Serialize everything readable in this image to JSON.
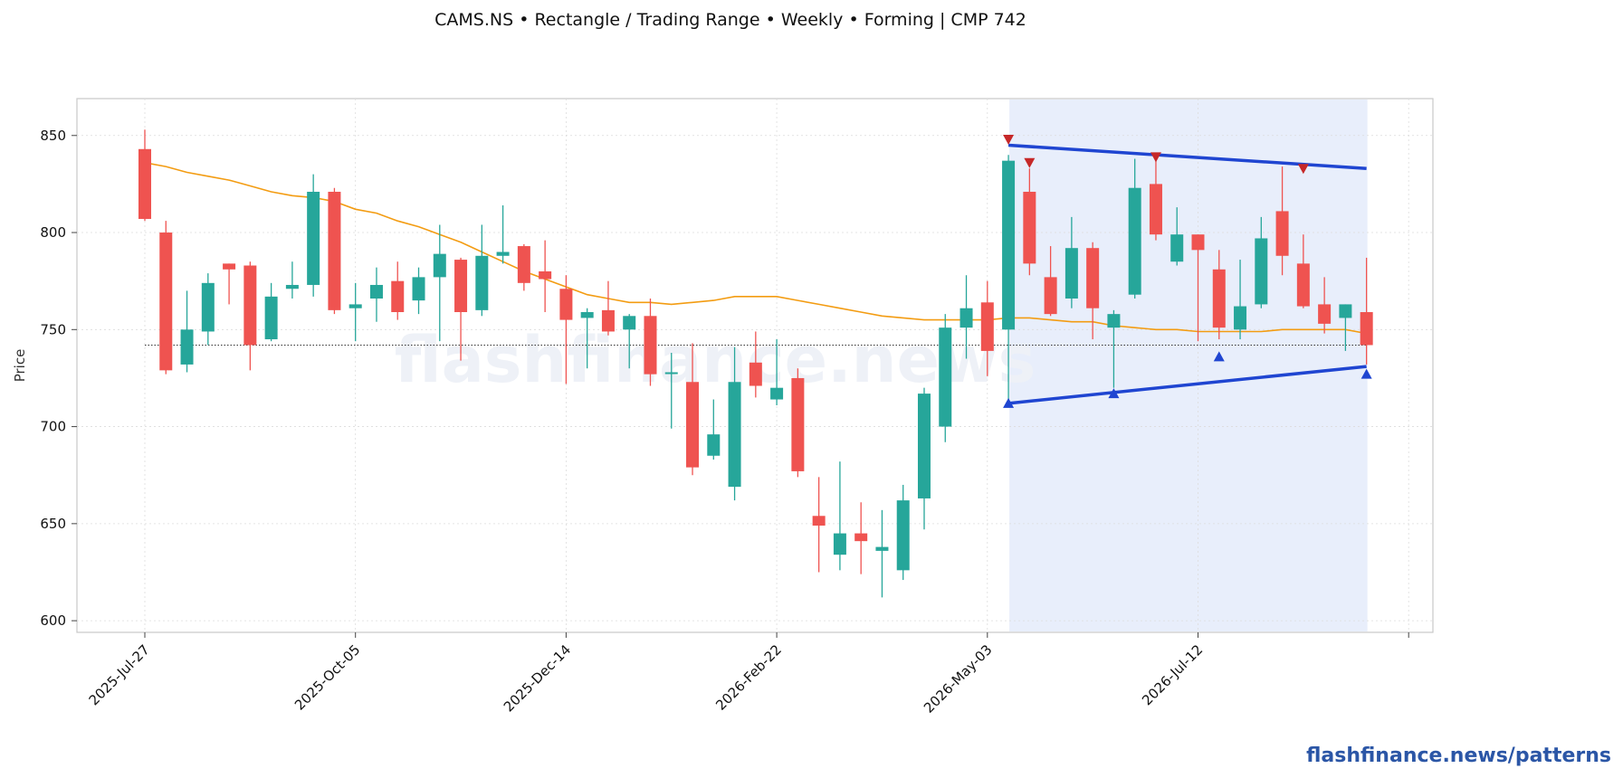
{
  "chart_data": {
    "type": "candlestick",
    "title": "CAMS.NS  •  Rectangle / Trading Range  •  Weekly  •  Forming  |  CMP 742",
    "ylabel": "Price",
    "xlabel": "",
    "ylim": [
      594,
      869
    ],
    "yticks": [
      600,
      650,
      700,
      750,
      800,
      850
    ],
    "grid": true,
    "watermark": "flashfinance.news",
    "footer": "flashfinance.news/patterns",
    "x_tick_labels": [
      "2025-Jul-27",
      "2025-Oct-05",
      "2025-Dec-14",
      "2026-Feb-22",
      "2026-May-03",
      "2026-Jul-12"
    ],
    "candles": [
      {
        "date": "2025-Jul-27",
        "o": 843,
        "h": 853,
        "l": 806,
        "c": 807
      },
      {
        "date": "2025-Aug-03",
        "o": 800,
        "h": 806,
        "l": 727,
        "c": 729
      },
      {
        "date": "2025-Aug-10",
        "o": 732,
        "h": 770,
        "l": 728,
        "c": 750
      },
      {
        "date": "2025-Aug-17",
        "o": 749,
        "h": 779,
        "l": 742,
        "c": 774
      },
      {
        "date": "2025-Aug-24",
        "o": 784,
        "h": 784,
        "l": 763,
        "c": 781
      },
      {
        "date": "2025-Aug-31",
        "o": 783,
        "h": 785,
        "l": 729,
        "c": 742
      },
      {
        "date": "2025-Sep-07",
        "o": 745,
        "h": 774,
        "l": 744,
        "c": 767
      },
      {
        "date": "2025-Sep-14",
        "o": 771,
        "h": 785,
        "l": 766,
        "c": 773
      },
      {
        "date": "2025-Sep-21",
        "o": 773,
        "h": 830,
        "l": 767,
        "c": 821
      },
      {
        "date": "2025-Sep-28",
        "o": 821,
        "h": 823,
        "l": 758,
        "c": 760
      },
      {
        "date": "2025-Oct-05",
        "o": 761,
        "h": 774,
        "l": 744,
        "c": 763
      },
      {
        "date": "2025-Oct-12",
        "o": 766,
        "h": 782,
        "l": 754,
        "c": 773
      },
      {
        "date": "2025-Oct-19",
        "o": 775,
        "h": 785,
        "l": 755,
        "c": 759
      },
      {
        "date": "2025-Oct-26",
        "o": 765,
        "h": 782,
        "l": 758,
        "c": 777
      },
      {
        "date": "2025-Nov-02",
        "o": 777,
        "h": 804,
        "l": 744,
        "c": 789
      },
      {
        "date": "2025-Nov-09",
        "o": 786,
        "h": 787,
        "l": 734,
        "c": 759
      },
      {
        "date": "2025-Nov-16",
        "o": 760,
        "h": 804,
        "l": 757,
        "c": 788
      },
      {
        "date": "2025-Nov-23",
        "o": 788,
        "h": 814,
        "l": 784,
        "c": 790
      },
      {
        "date": "2025-Nov-30",
        "o": 793,
        "h": 794,
        "l": 770,
        "c": 774
      },
      {
        "date": "2025-Dec-07",
        "o": 780,
        "h": 796,
        "l": 759,
        "c": 776
      },
      {
        "date": "2025-Dec-14",
        "o": 771,
        "h": 778,
        "l": 722,
        "c": 755
      },
      {
        "date": "2025-Dec-21",
        "o": 756,
        "h": 761,
        "l": 730,
        "c": 759
      },
      {
        "date": "2025-Dec-28",
        "o": 760,
        "h": 775,
        "l": 747,
        "c": 749
      },
      {
        "date": "2026-Jan-04",
        "o": 750,
        "h": 758,
        "l": 730,
        "c": 757
      },
      {
        "date": "2026-Jan-11",
        "o": 757,
        "h": 766,
        "l": 721,
        "c": 727
      },
      {
        "date": "2026-Jan-18",
        "o": 728,
        "h": 738,
        "l": 699,
        "c": 728
      },
      {
        "date": "2026-Jan-25",
        "o": 723,
        "h": 743,
        "l": 675,
        "c": 679
      },
      {
        "date": "2026-Feb-01",
        "o": 685,
        "h": 714,
        "l": 683,
        "c": 696
      },
      {
        "date": "2026-Feb-08",
        "o": 669,
        "h": 741,
        "l": 662,
        "c": 723
      },
      {
        "date": "2026-Feb-15",
        "o": 733,
        "h": 749,
        "l": 715,
        "c": 721
      },
      {
        "date": "2026-Feb-22",
        "o": 714,
        "h": 745,
        "l": 711,
        "c": 720
      },
      {
        "date": "2026-Mar-01",
        "o": 725,
        "h": 730,
        "l": 674,
        "c": 677
      },
      {
        "date": "2026-Mar-08",
        "o": 654,
        "h": 674,
        "l": 625,
        "c": 649
      },
      {
        "date": "2026-Mar-15",
        "o": 634,
        "h": 682,
        "l": 626,
        "c": 645
      },
      {
        "date": "2026-Mar-22",
        "o": 645,
        "h": 661,
        "l": 624,
        "c": 641
      },
      {
        "date": "2026-Mar-29",
        "o": 636,
        "h": 657,
        "l": 612,
        "c": 638
      },
      {
        "date": "2026-Apr-05",
        "o": 626,
        "h": 670,
        "l": 621,
        "c": 662
      },
      {
        "date": "2026-Apr-12",
        "o": 663,
        "h": 720,
        "l": 647,
        "c": 717
      },
      {
        "date": "2026-Apr-19",
        "o": 700,
        "h": 758,
        "l": 692,
        "c": 751
      },
      {
        "date": "2026-Apr-26",
        "o": 751,
        "h": 778,
        "l": 735,
        "c": 761
      },
      {
        "date": "2026-May-03",
        "o": 764,
        "h": 775,
        "l": 726,
        "c": 739
      },
      {
        "date": "2026-May-10",
        "o": 750,
        "h": 840,
        "l": 713,
        "c": 837
      },
      {
        "date": "2026-May-17",
        "o": 821,
        "h": 833,
        "l": 778,
        "c": 784
      },
      {
        "date": "2026-May-24",
        "o": 777,
        "h": 793,
        "l": 757,
        "c": 758
      },
      {
        "date": "2026-May-31",
        "o": 766,
        "h": 808,
        "l": 761,
        "c": 792
      },
      {
        "date": "2026-Jun-07",
        "o": 792,
        "h": 795,
        "l": 745,
        "c": 761
      },
      {
        "date": "2026-Jun-14",
        "o": 751,
        "h": 760,
        "l": 720,
        "c": 758
      },
      {
        "date": "2026-Jun-21",
        "o": 768,
        "h": 838,
        "l": 766,
        "c": 823
      },
      {
        "date": "2026-Jun-28",
        "o": 825,
        "h": 837,
        "l": 796,
        "c": 799
      },
      {
        "date": "2026-Jul-05",
        "o": 785,
        "h": 813,
        "l": 783,
        "c": 799
      },
      {
        "date": "2026-Jul-12",
        "o": 799,
        "h": 799,
        "l": 744,
        "c": 791
      },
      {
        "date": "2026-Jul-19",
        "o": 781,
        "h": 791,
        "l": 745,
        "c": 751
      },
      {
        "date": "2026-Jul-26",
        "o": 750,
        "h": 786,
        "l": 745,
        "c": 762
      },
      {
        "date": "2026-Aug-02",
        "o": 763,
        "h": 808,
        "l": 761,
        "c": 797
      },
      {
        "date": "2026-Aug-09",
        "o": 811,
        "h": 834,
        "l": 778,
        "c": 788
      },
      {
        "date": "2026-Aug-16",
        "o": 784,
        "h": 799,
        "l": 761,
        "c": 762
      },
      {
        "date": "2026-Aug-23",
        "o": 763,
        "h": 777,
        "l": 748,
        "c": 753
      },
      {
        "date": "2026-Aug-30",
        "o": 756,
        "h": 763,
        "l": 739,
        "c": 763
      },
      {
        "date": "2026-Sep-06",
        "o": 759,
        "h": 787,
        "l": 732,
        "c": 742
      }
    ],
    "moving_average": [
      836,
      834,
      831,
      829,
      827,
      824,
      821,
      819,
      818,
      816,
      812,
      810,
      806,
      803,
      799,
      795,
      790,
      785,
      780,
      776,
      772,
      768,
      766,
      764,
      764,
      763,
      764,
      765,
      767,
      767,
      767,
      765,
      763,
      761,
      759,
      757,
      756,
      755,
      755,
      755,
      755,
      756,
      756,
      755,
      754,
      754,
      752,
      751,
      750,
      750,
      749,
      749,
      749,
      749,
      750,
      750,
      750,
      750,
      748
    ],
    "current_price": 742,
    "pattern": {
      "name": "Rectangle / Trading Range",
      "status": "Forming",
      "start_index": 41,
      "end_index": 58,
      "resistance": [
        [
          41,
          845
        ],
        [
          58,
          833
        ]
      ],
      "support": [
        [
          41,
          712
        ],
        [
          58,
          731
        ]
      ],
      "resistance_markers": [
        [
          41,
          848
        ],
        [
          42,
          836
        ],
        [
          48,
          839
        ],
        [
          55,
          833
        ]
      ],
      "support_markers": [
        [
          41,
          712
        ],
        [
          46,
          717
        ],
        [
          51,
          736
        ],
        [
          58,
          727
        ]
      ]
    },
    "colors": {
      "up": "#26a69a",
      "down": "#ef5350",
      "moving_average": "#f39c12",
      "trendline": "#1f45d1",
      "resistance_marker": "#c62828",
      "support_marker": "#1f45d1",
      "pattern_zone": "#e8eefb",
      "footer": "#2b56a6",
      "watermark": "#eef1f7"
    }
  }
}
